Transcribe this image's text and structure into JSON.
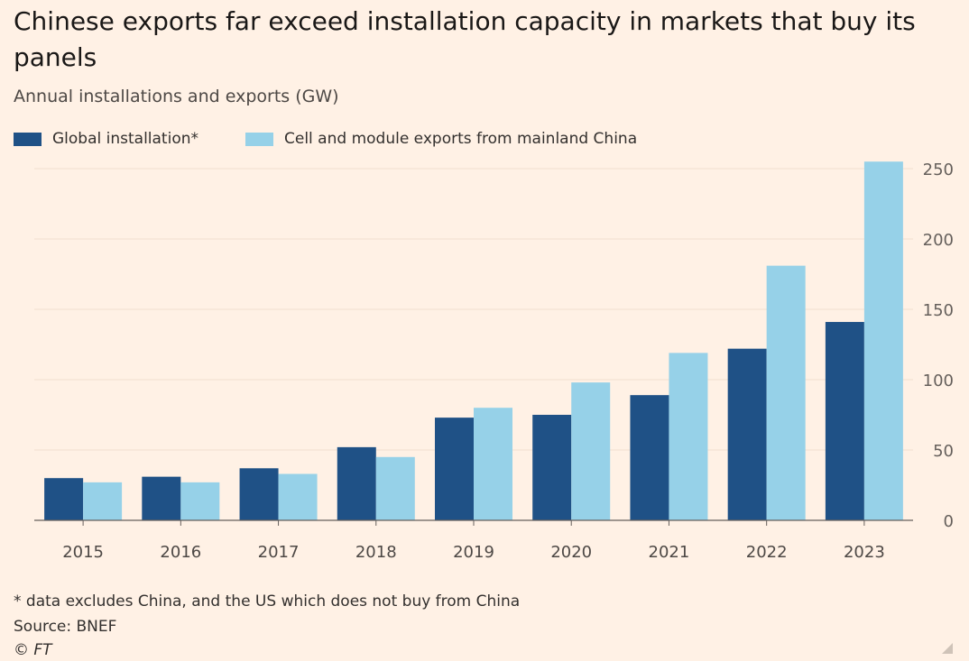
{
  "title": "Chinese exports far exceed installation capacity in markets that buy its panels",
  "subtitle": "Annual installations and exports (GW)",
  "footnote": "* data excludes China, and the US which does not buy from China",
  "source": "Source: BNEF",
  "copyright": "© FT",
  "colors": {
    "background": "#FFF1E5",
    "series_global": "#1F5186",
    "series_exports": "#96D1E8",
    "gridline": "#F2DFCE",
    "axis": "#66605C",
    "text": "#33302E"
  },
  "chart_data": {
    "type": "bar",
    "categories": [
      "2015",
      "2016",
      "2017",
      "2018",
      "2019",
      "2020",
      "2021",
      "2022",
      "2023"
    ],
    "series": [
      {
        "name": "Global installation*",
        "color": "#1F5186",
        "values": [
          30,
          31,
          37,
          52,
          73,
          75,
          89,
          122,
          141
        ]
      },
      {
        "name": "Cell and module exports from mainland China",
        "color": "#96D1E8",
        "values": [
          27,
          27,
          33,
          45,
          80,
          98,
          119,
          181,
          255
        ]
      }
    ],
    "ylim": [
      0,
      250
    ],
    "yticks": [
      0,
      50,
      100,
      150,
      200,
      250
    ],
    "yaxis_side": "right",
    "grid": true,
    "legend": "top-left",
    "xlabel": "",
    "ylabel": ""
  }
}
